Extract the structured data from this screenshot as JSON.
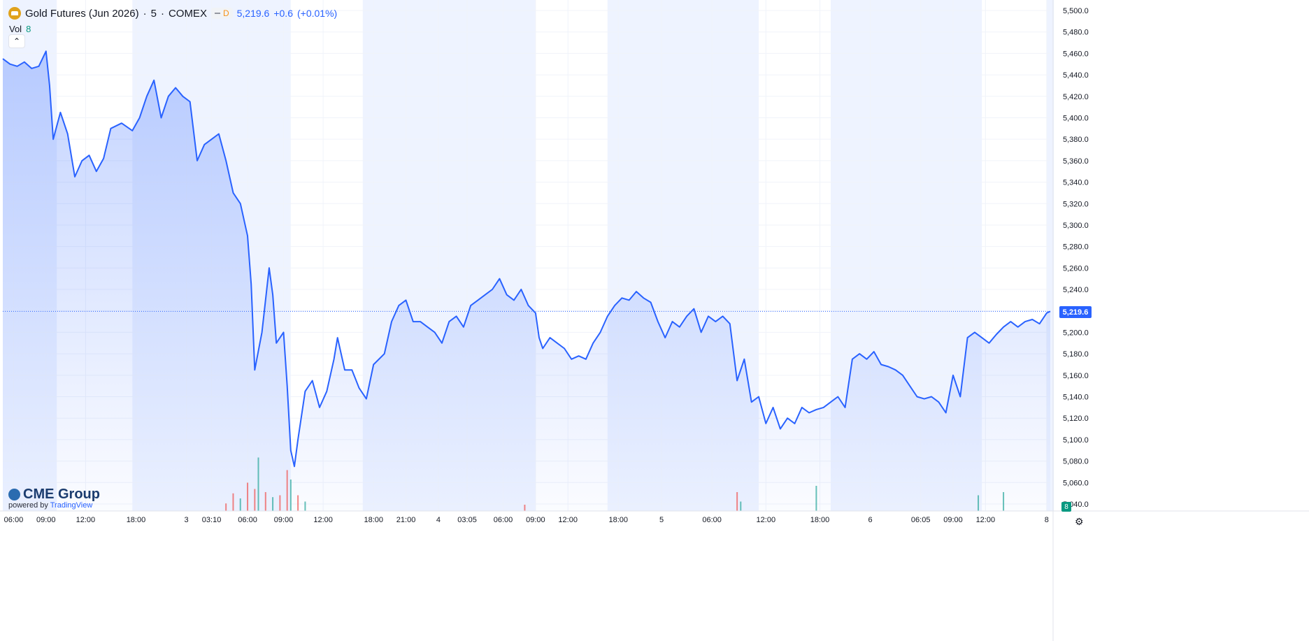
{
  "legend": {
    "symbol": "Gold Futures (Jun 2026)",
    "interval": "5",
    "exchange": "COMEX",
    "badge": "D",
    "price": "5,219.6",
    "change": "+0.6",
    "change_pct": "(+0.01%)",
    "separator": "·"
  },
  "volume": {
    "label": "Vol",
    "value": "8"
  },
  "branding": {
    "name": "CME Group",
    "powered_prefix": "powered by",
    "powered_brand": "TradingView"
  },
  "last_price_label": "5,219.6",
  "volume_axis_label": "8",
  "colors": {
    "line": "#2962ff",
    "area": "#2962ff",
    "session_band": "#2962ff",
    "up_volume": "#26a69a",
    "down_volume": "#ef5350"
  },
  "chart_data": {
    "type": "area",
    "y_ticks": [
      "5,500.0",
      "5,480.0",
      "5,460.0",
      "5,440.0",
      "5,420.0",
      "5,400.0",
      "5,380.0",
      "5,360.0",
      "5,340.0",
      "5,320.0",
      "5,300.0",
      "5,280.0",
      "5,260.0",
      "5,240.0",
      "5,220.0",
      "5,200.0",
      "5,180.0",
      "5,160.0",
      "5,140.0",
      "5,120.0",
      "5,100.0",
      "5,080.0",
      "5,060.0",
      "5,040.0"
    ],
    "ylim": [
      5030,
      5505
    ],
    "x_ticks": [
      "06:00",
      "09:00",
      "12:00",
      "18:00",
      "3",
      "03:10",
      "06:00",
      "09:00",
      "12:00",
      "18:00",
      "21:00",
      "4",
      "03:05",
      "06:00",
      "09:00",
      "12:00",
      "18:00",
      "5",
      "06:00",
      "12:00",
      "18:00",
      "6",
      "06:05",
      "09:00",
      "12:00",
      "8"
    ],
    "x_tick_index": [
      3,
      12,
      23,
      37,
      51,
      58,
      68,
      78,
      89,
      103,
      112,
      121,
      129,
      139,
      148,
      157,
      171,
      183,
      197,
      212,
      227,
      241,
      255,
      264,
      273,
      290
    ],
    "bar_count": 292,
    "session_bands": [
      [
        0,
        15
      ],
      [
        36,
        80
      ],
      [
        100,
        148
      ],
      [
        168,
        210
      ],
      [
        230,
        272
      ],
      [
        290,
        292
      ]
    ],
    "series": [
      {
        "values": [
          [
            0,
            5455
          ],
          [
            2,
            5450
          ],
          [
            4,
            5448
          ],
          [
            6,
            5452
          ],
          [
            8,
            5446
          ],
          [
            10,
            5448
          ],
          [
            12,
            5462
          ],
          [
            13,
            5430
          ],
          [
            14,
            5380
          ],
          [
            16,
            5405
          ],
          [
            18,
            5385
          ],
          [
            20,
            5345
          ],
          [
            22,
            5360
          ],
          [
            24,
            5365
          ],
          [
            26,
            5350
          ],
          [
            28,
            5362
          ],
          [
            30,
            5390
          ],
          [
            33,
            5395
          ],
          [
            36,
            5388
          ],
          [
            38,
            5400
          ],
          [
            40,
            5420
          ],
          [
            42,
            5435
          ],
          [
            44,
            5400
          ],
          [
            46,
            5420
          ],
          [
            48,
            5428
          ],
          [
            50,
            5420
          ],
          [
            52,
            5415
          ],
          [
            54,
            5360
          ],
          [
            56,
            5375
          ],
          [
            58,
            5380
          ],
          [
            60,
            5385
          ],
          [
            62,
            5360
          ],
          [
            64,
            5330
          ],
          [
            66,
            5320
          ],
          [
            68,
            5290
          ],
          [
            69,
            5245
          ],
          [
            70,
            5165
          ],
          [
            72,
            5200
          ],
          [
            74,
            5260
          ],
          [
            75,
            5235
          ],
          [
            76,
            5190
          ],
          [
            78,
            5200
          ],
          [
            79,
            5150
          ],
          [
            80,
            5090
          ],
          [
            81,
            5075
          ],
          [
            82,
            5100
          ],
          [
            84,
            5145
          ],
          [
            86,
            5155
          ],
          [
            88,
            5130
          ],
          [
            90,
            5145
          ],
          [
            92,
            5175
          ],
          [
            93,
            5195
          ],
          [
            95,
            5165
          ],
          [
            97,
            5165
          ],
          [
            99,
            5148
          ],
          [
            101,
            5138
          ],
          [
            103,
            5170
          ],
          [
            106,
            5180
          ],
          [
            108,
            5210
          ],
          [
            110,
            5225
          ],
          [
            112,
            5230
          ],
          [
            114,
            5210
          ],
          [
            116,
            5210
          ],
          [
            118,
            5205
          ],
          [
            120,
            5200
          ],
          [
            122,
            5190
          ],
          [
            124,
            5210
          ],
          [
            126,
            5215
          ],
          [
            128,
            5205
          ],
          [
            130,
            5225
          ],
          [
            132,
            5230
          ],
          [
            134,
            5235
          ],
          [
            136,
            5240
          ],
          [
            138,
            5250
          ],
          [
            140,
            5235
          ],
          [
            142,
            5230
          ],
          [
            144,
            5240
          ],
          [
            146,
            5225
          ],
          [
            148,
            5218
          ],
          [
            149,
            5195
          ],
          [
            150,
            5185
          ],
          [
            152,
            5195
          ],
          [
            154,
            5190
          ],
          [
            156,
            5185
          ],
          [
            158,
            5175
          ],
          [
            160,
            5178
          ],
          [
            162,
            5175
          ],
          [
            164,
            5190
          ],
          [
            166,
            5200
          ],
          [
            168,
            5215
          ],
          [
            170,
            5225
          ],
          [
            172,
            5232
          ],
          [
            174,
            5230
          ],
          [
            176,
            5238
          ],
          [
            178,
            5232
          ],
          [
            180,
            5228
          ],
          [
            182,
            5210
          ],
          [
            184,
            5195
          ],
          [
            186,
            5210
          ],
          [
            188,
            5205
          ],
          [
            190,
            5215
          ],
          [
            192,
            5222
          ],
          [
            194,
            5200
          ],
          [
            196,
            5215
          ],
          [
            198,
            5210
          ],
          [
            200,
            5215
          ],
          [
            202,
            5208
          ],
          [
            204,
            5155
          ],
          [
            206,
            5175
          ],
          [
            208,
            5135
          ],
          [
            210,
            5140
          ],
          [
            212,
            5115
          ],
          [
            214,
            5130
          ],
          [
            216,
            5110
          ],
          [
            218,
            5120
          ],
          [
            220,
            5115
          ],
          [
            222,
            5130
          ],
          [
            224,
            5125
          ],
          [
            226,
            5128
          ],
          [
            228,
            5130
          ],
          [
            230,
            5135
          ],
          [
            232,
            5140
          ],
          [
            234,
            5130
          ],
          [
            236,
            5175
          ],
          [
            238,
            5180
          ],
          [
            240,
            5175
          ],
          [
            242,
            5182
          ],
          [
            244,
            5170
          ],
          [
            246,
            5168
          ],
          [
            248,
            5165
          ],
          [
            250,
            5160
          ],
          [
            252,
            5150
          ],
          [
            254,
            5140
          ],
          [
            256,
            5138
          ],
          [
            258,
            5140
          ],
          [
            260,
            5135
          ],
          [
            262,
            5125
          ],
          [
            264,
            5160
          ],
          [
            266,
            5140
          ],
          [
            268,
            5195
          ],
          [
            270,
            5200
          ],
          [
            272,
            5195
          ],
          [
            274,
            5190
          ],
          [
            276,
            5198
          ],
          [
            278,
            5205
          ],
          [
            280,
            5210
          ],
          [
            282,
            5205
          ],
          [
            284,
            5210
          ],
          [
            286,
            5212
          ],
          [
            288,
            5208
          ],
          [
            290,
            5218
          ],
          [
            291,
            5219.6
          ]
        ]
      }
    ],
    "volume_spikes": [
      [
        62,
        0.12,
        "down"
      ],
      [
        64,
        0.28,
        "down"
      ],
      [
        66,
        0.2,
        "up"
      ],
      [
        68,
        0.45,
        "down"
      ],
      [
        70,
        0.35,
        "down"
      ],
      [
        71,
        0.85,
        "up"
      ],
      [
        73,
        0.3,
        "down"
      ],
      [
        75,
        0.22,
        "up"
      ],
      [
        77,
        0.25,
        "down"
      ],
      [
        79,
        0.65,
        "down"
      ],
      [
        80,
        0.5,
        "up"
      ],
      [
        82,
        0.25,
        "down"
      ],
      [
        84,
        0.15,
        "up"
      ],
      [
        145,
        0.1,
        "down"
      ],
      [
        204,
        0.3,
        "down"
      ],
      [
        205,
        0.15,
        "up"
      ],
      [
        226,
        0.4,
        "up"
      ],
      [
        271,
        0.25,
        "up"
      ],
      [
        278,
        0.3,
        "up"
      ]
    ],
    "last_value": 5219.6
  }
}
